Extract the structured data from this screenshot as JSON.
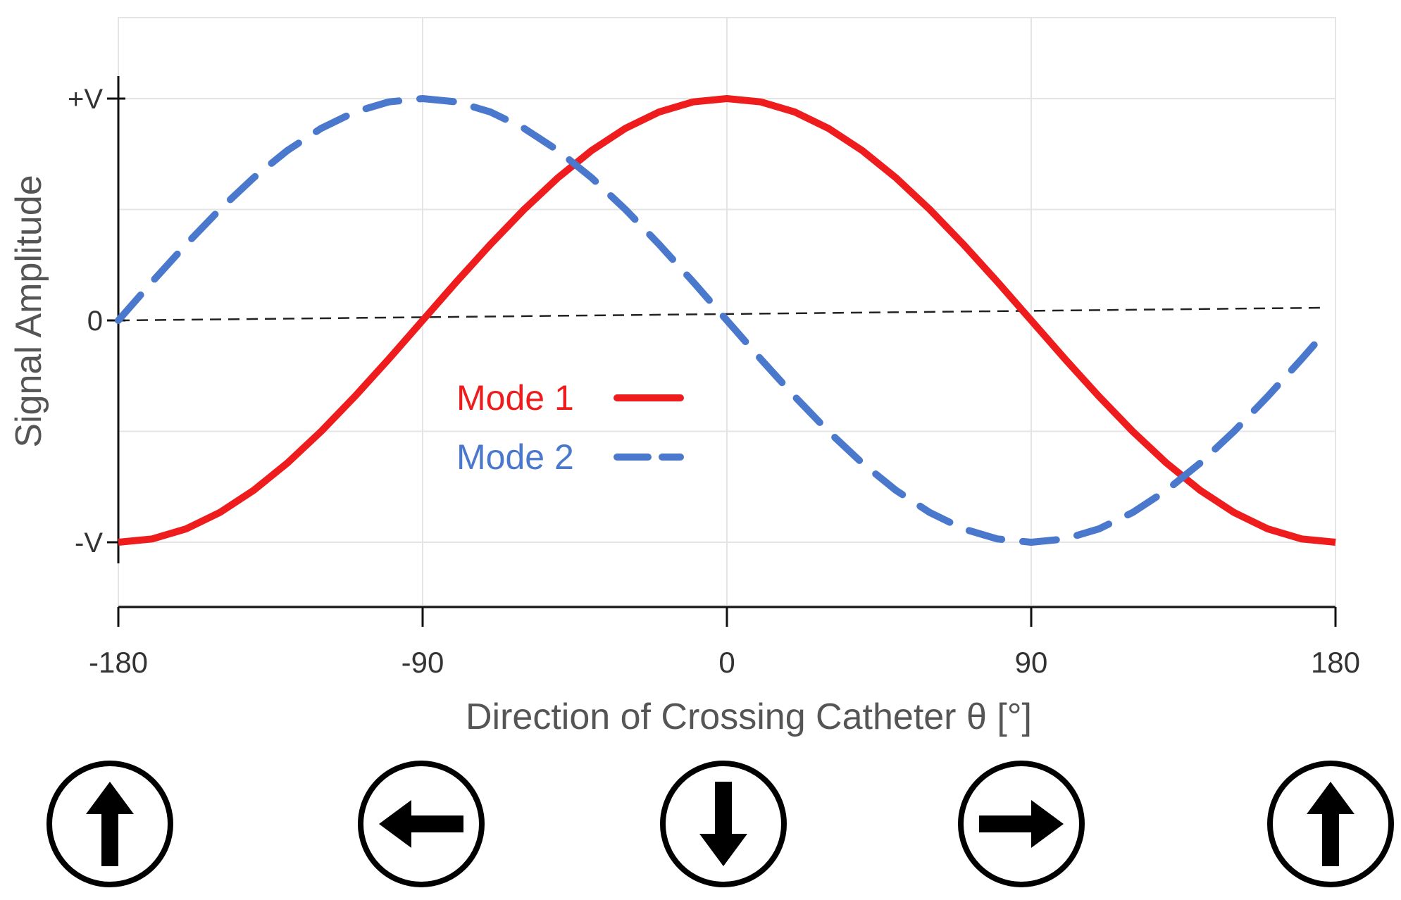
{
  "chart_data": {
    "type": "line",
    "xlabel": "Direction of Crossing Catheter  θ [°]",
    "ylabel": "Signal Amplitude",
    "xlim": [
      -180,
      180
    ],
    "ylim": [
      -1,
      1
    ],
    "x_ticks": [
      -180,
      -90,
      0,
      90,
      180
    ],
    "x_tick_labels": [
      "-180",
      "-90",
      "0",
      "90",
      "180"
    ],
    "y_ticks": [
      1,
      0,
      -1
    ],
    "y_tick_labels": [
      "+V",
      "0",
      "-V"
    ],
    "grid": true,
    "zero_line": "dashed",
    "legend_position": "center",
    "series": [
      {
        "name": "Mode 1",
        "color": "#ee1c1c",
        "style": "solid",
        "x": [
          -180,
          -170,
          -160,
          -150,
          -140,
          -130,
          -120,
          -110,
          -100,
          -90,
          -80,
          -70,
          -60,
          -50,
          -40,
          -30,
          -20,
          -10,
          0,
          10,
          20,
          30,
          40,
          50,
          60,
          70,
          80,
          90,
          100,
          110,
          120,
          130,
          140,
          150,
          160,
          170,
          180
        ],
        "values": [
          -1,
          -0.985,
          -0.94,
          -0.866,
          -0.766,
          -0.643,
          -0.5,
          -0.342,
          -0.174,
          0,
          0.174,
          0.342,
          0.5,
          0.643,
          0.766,
          0.866,
          0.94,
          0.985,
          1,
          0.985,
          0.94,
          0.866,
          0.766,
          0.643,
          0.5,
          0.342,
          0.174,
          0,
          -0.174,
          -0.342,
          -0.5,
          -0.643,
          -0.766,
          -0.866,
          -0.94,
          -0.985,
          -1
        ]
      },
      {
        "name": "Mode 2",
        "color": "#4a78cc",
        "style": "dashed",
        "x": [
          -180,
          -170,
          -160,
          -150,
          -140,
          -130,
          -120,
          -110,
          -100,
          -90,
          -80,
          -70,
          -60,
          -50,
          -40,
          -30,
          -20,
          -10,
          0,
          10,
          20,
          30,
          40,
          50,
          60,
          70,
          80,
          90,
          100,
          110,
          120,
          130,
          140,
          150,
          160,
          170,
          175
        ],
        "values": [
          0,
          0.174,
          0.342,
          0.5,
          0.643,
          0.766,
          0.866,
          0.94,
          0.985,
          1,
          0.985,
          0.94,
          0.866,
          0.766,
          0.643,
          0.5,
          0.342,
          0.174,
          0,
          -0.174,
          -0.342,
          -0.5,
          -0.643,
          -0.766,
          -0.866,
          -0.94,
          -0.985,
          -1,
          -0.985,
          -0.94,
          -0.866,
          -0.766,
          -0.643,
          -0.5,
          -0.342,
          -0.174,
          -0.087
        ]
      }
    ],
    "direction_icons": [
      {
        "angle": -180,
        "icon": "arrow-up-icon"
      },
      {
        "angle": -90,
        "icon": "arrow-left-icon"
      },
      {
        "angle": 0,
        "icon": "arrow-down-icon"
      },
      {
        "angle": 90,
        "icon": "arrow-right-icon"
      },
      {
        "angle": 180,
        "icon": "arrow-up-icon"
      }
    ]
  }
}
